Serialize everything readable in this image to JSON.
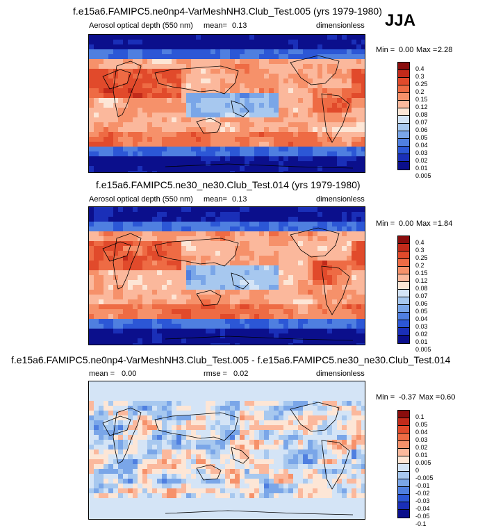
{
  "season": "JJA",
  "palette": {
    "p12": [
      "#8a0d0d",
      "#c22a1a",
      "#e14a2b",
      "#ee6b44",
      "#f6916a",
      "#fbb89c",
      "#fde6d6",
      "#d4e4f6",
      "#a7c8ef",
      "#7aa6e8",
      "#4f7fe0",
      "#2c57d6",
      "#1a2fb8",
      "#0b0f8c"
    ],
    "diff": [
      "#8a0d0d",
      "#c22a1a",
      "#e14a2b",
      "#ee6b44",
      "#f6916a",
      "#fbb89c",
      "#fde6d6",
      "#d4e4f6",
      "#a7c8ef",
      "#7aa6e8",
      "#4f7fe0",
      "#2c57d6",
      "#1a2fb8",
      "#0b0f8c"
    ]
  },
  "chart_data": [
    {
      "type": "heatmap",
      "title": "f.e15a6.FAMIPC5.ne0np4-VarMeshNH3.Club_Test.005 (yrs 1979-1980)",
      "left_label": "Aerosol optical depth (550 nm)",
      "mean_label": "mean=",
      "mean_value": "0.13",
      "units": "dimensionless",
      "min_label": "Min =",
      "min_value": "0.00",
      "max_label": "Max =",
      "max_value": "2.28",
      "levels": [
        "0.4",
        "0.3",
        "0.25",
        "0.2",
        "0.15",
        "0.12",
        "0.08",
        "0.07",
        "0.06",
        "0.05",
        "0.04",
        "0.03",
        "0.02",
        "0.01",
        "0.005"
      ]
    },
    {
      "type": "heatmap",
      "title": "f.e15a6.FAMIPC5.ne30_ne30.Club_Test.014 (yrs 1979-1980)",
      "left_label": "Aerosol optical depth (550 nm)",
      "mean_label": "mean=",
      "mean_value": "0.13",
      "units": "dimensionless",
      "min_label": "Min =",
      "min_value": "0.00",
      "max_label": "Max =",
      "max_value": "1.84",
      "levels": [
        "0.4",
        "0.3",
        "0.25",
        "0.2",
        "0.15",
        "0.12",
        "0.08",
        "0.07",
        "0.06",
        "0.05",
        "0.04",
        "0.03",
        "0.02",
        "0.01",
        "0.005"
      ]
    },
    {
      "type": "heatmap",
      "title": "f.e15a6.FAMIPC5.ne0np4-VarMeshNH3.Club_Test.005 - f.e15a6.FAMIPC5.ne30_ne30.Club_Test.014",
      "mean_label": "mean =",
      "mean_value": "0.00",
      "rmse_label": "rmse =",
      "rmse_value": "0.02",
      "units": "dimensionless",
      "min_label": "Min =",
      "min_value": "-0.37",
      "max_label": "Max =",
      "max_value": "0.60",
      "levels": [
        "0.1",
        "0.05",
        "0.04",
        "0.03",
        "0.02",
        "0.01",
        "0.005",
        "0",
        "-0.005",
        "-0.01",
        "-0.02",
        "-0.03",
        "-0.04",
        "-0.05",
        "-0.1"
      ]
    }
  ]
}
